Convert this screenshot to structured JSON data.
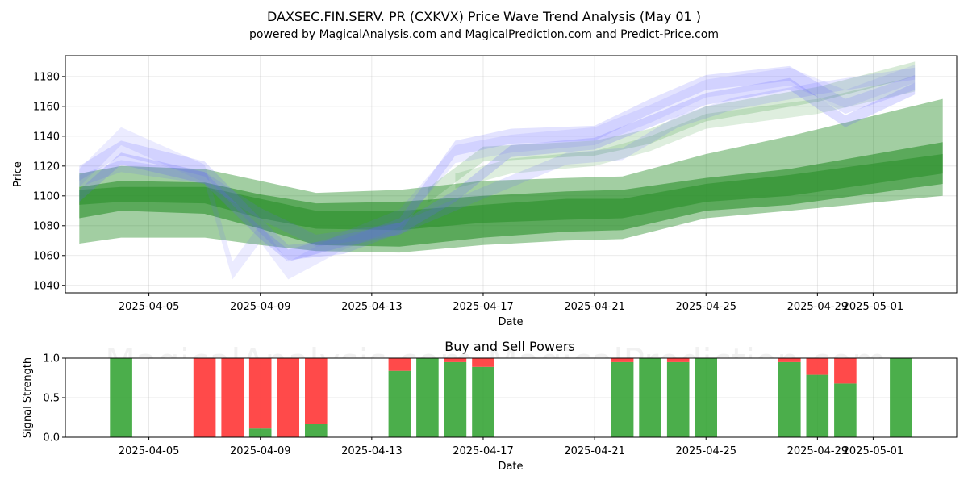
{
  "chart_data": [
    {
      "type": "area",
      "title": "DAXSEC.FIN.SERV. PR (CXKVX) Price Wave Trend Analysis (May 01 )",
      "subtitle": "powered by MagicalAnalysis.com and MagicalPrediction.com and Predict-Price.com",
      "xlabel": "Date",
      "ylabel": "Price",
      "xlim": [
        "2025-04-02",
        "2025-05-04"
      ],
      "ylim": [
        1035,
        1194
      ],
      "x_ticks": [
        "2025-04-05",
        "2025-04-09",
        "2025-04-13",
        "2025-04-17",
        "2025-04-21",
        "2025-04-25",
        "2025-04-29",
        "2025-05-01"
      ],
      "y_ticks": [
        1040,
        1060,
        1080,
        1100,
        1120,
        1140,
        1160,
        1180
      ],
      "grid": true,
      "watermarks": [
        "MagicalAnalysis.com",
        "MagicalPrediction.com"
      ],
      "colors": {
        "green": "#228b22",
        "blue": "#6464ff",
        "buy": "#2ca02c",
        "sell": "#ff4040"
      },
      "green_bands": [
        {
          "x": [
            "2025-04-02.5",
            "2025-04-04",
            "2025-04-07",
            "2025-04-09",
            "2025-04-11",
            "2025-04-14",
            "2025-04-17",
            "2025-04-20",
            "2025-04-22",
            "2025-04-25",
            "2025-04-28",
            "2025-05-03.5"
          ],
          "upper": [
            1106,
            1110,
            1109,
            1101,
            1095,
            1096,
            1100,
            1103,
            1104,
            1112,
            1118,
            1136
          ],
          "lower": [
            1085,
            1090,
            1088,
            1078,
            1067,
            1066,
            1072,
            1076,
            1077,
            1090,
            1094,
            1108
          ],
          "opacity": 0.55
        },
        {
          "x": [
            "2025-04-02.5",
            "2025-04-04",
            "2025-04-07",
            "2025-04-09",
            "2025-04-11",
            "2025-04-14",
            "2025-04-17",
            "2025-04-20",
            "2025-04-22",
            "2025-04-25",
            "2025-04-28",
            "2025-05-03.5"
          ],
          "upper": [
            1115,
            1120,
            1118,
            1110,
            1102,
            1104,
            1110,
            1112,
            1113,
            1128,
            1140,
            1165
          ],
          "lower": [
            1068,
            1072,
            1072,
            1067,
            1063,
            1062,
            1067,
            1070,
            1071,
            1085,
            1090,
            1100
          ],
          "opacity": 0.42
        },
        {
          "x": [
            "2025-04-02.5",
            "2025-04-04",
            "2025-04-07",
            "2025-04-09",
            "2025-04-11",
            "2025-04-14",
            "2025-04-17",
            "2025-04-20",
            "2025-04-22",
            "2025-04-25",
            "2025-04-28",
            "2025-05-03.5"
          ],
          "upper": [
            1104,
            1106,
            1106,
            1098,
            1090,
            1090,
            1094,
            1098,
            1098,
            1108,
            1114,
            1128
          ],
          "lower": [
            1094,
            1096,
            1095,
            1085,
            1078,
            1077,
            1082,
            1084,
            1085,
            1096,
            1100,
            1115
          ],
          "opacity": 0.5
        }
      ],
      "blue_bands": [
        {
          "x": [
            "2025-04-02.5",
            "2025-04-04",
            "2025-04-07",
            "2025-04-09",
            "2025-04-10",
            "2025-04-12",
            "2025-04-14",
            "2025-04-16",
            "2025-04-18",
            "2025-04-21",
            "2025-04-23",
            "2025-04-25",
            "2025-04-28",
            "2025-04-30",
            "2025-05-02.5"
          ],
          "center": [
            1115,
            1132,
            1118,
            1080,
            1062,
            1066,
            1080,
            1132,
            1140,
            1142,
            1160,
            1176,
            1182,
            1160,
            1176
          ],
          "half": 5,
          "opacity": 0.18
        },
        {
          "x": [
            "2025-04-02.5",
            "2025-04-04",
            "2025-04-07",
            "2025-04-08",
            "2025-04-09",
            "2025-04-10",
            "2025-04-12",
            "2025-04-14",
            "2025-04-16",
            "2025-04-18",
            "2025-04-21",
            "2025-04-23",
            "2025-04-25",
            "2025-04-28",
            "2025-04-30",
            "2025-05-02.5"
          ],
          "center": [
            1112,
            1140,
            1115,
            1050,
            1075,
            1050,
            1070,
            1085,
            1128,
            1135,
            1140,
            1155,
            1172,
            1180,
            1165,
            1182
          ],
          "half": 6,
          "opacity": 0.13
        },
        {
          "x": [
            "2025-04-02.5",
            "2025-04-04",
            "2025-04-07",
            "2025-04-09",
            "2025-04-10",
            "2025-04-12",
            "2025-04-14",
            "2025-04-16",
            "2025-04-18",
            "2025-04-21",
            "2025-04-23",
            "2025-04-25",
            "2025-04-28",
            "2025-04-30",
            "2025-05-02.5"
          ],
          "center": [
            1100,
            1125,
            1112,
            1075,
            1060,
            1070,
            1078,
            1100,
            1130,
            1135,
            1150,
            1165,
            1175,
            1150,
            1172
          ],
          "half": 4,
          "opacity": 0.22
        },
        {
          "x": [
            "2025-04-02.5",
            "2025-04-04",
            "2025-04-07",
            "2025-04-09",
            "2025-04-11",
            "2025-04-14",
            "2025-04-17",
            "2025-04-20",
            "2025-04-22",
            "2025-04-24",
            "2025-04-26",
            "2025-04-29",
            "2025-05-02.5"
          ],
          "center": [
            1110,
            1120,
            1112,
            1088,
            1070,
            1078,
            1102,
            1125,
            1128,
            1150,
            1162,
            1172,
            1182
          ],
          "half": 4,
          "opacity": 0.16
        }
      ],
      "light_green_bands": [
        {
          "x": [
            "2025-04-15",
            "2025-04-17",
            "2025-04-21",
            "2025-04-23",
            "2025-04-25",
            "2025-04-29",
            "2025-05-02.5"
          ],
          "center": [
            1100,
            1128,
            1132,
            1140,
            1155,
            1168,
            1185
          ],
          "half": 5,
          "opacity": 0.18
        },
        {
          "x": [
            "2025-04-16",
            "2025-04-18",
            "2025-04-21",
            "2025-04-23",
            "2025-04-25",
            "2025-04-29",
            "2025-05-02.5"
          ],
          "center": [
            1110,
            1120,
            1125,
            1135,
            1150,
            1160,
            1175
          ],
          "half": 5,
          "opacity": 0.15
        }
      ]
    },
    {
      "type": "bar",
      "title": "Buy and Sell Powers",
      "xlabel": "Date",
      "ylabel": "Signal Strength",
      "xlim": [
        "2025-04-02",
        "2025-05-04"
      ],
      "ylim": [
        0,
        1
      ],
      "y_ticks": [
        0.0,
        0.5,
        1.0
      ],
      "y_tick_labels": [
        "0.0",
        "0.5",
        "1.0"
      ],
      "x_ticks": [
        "2025-04-05",
        "2025-04-09",
        "2025-04-13",
        "2025-04-17",
        "2025-04-21",
        "2025-04-25",
        "2025-04-29",
        "2025-05-01"
      ],
      "legend": "none",
      "bars": [
        {
          "date": "2025-04-04",
          "buy": 1.0
        },
        {
          "date": "2025-04-07",
          "buy": 0.0
        },
        {
          "date": "2025-04-08",
          "buy": 0.0
        },
        {
          "date": "2025-04-09",
          "buy": 0.11
        },
        {
          "date": "2025-04-10",
          "buy": 0.0
        },
        {
          "date": "2025-04-11",
          "buy": 0.17
        },
        {
          "date": "2025-04-14",
          "buy": 0.84
        },
        {
          "date": "2025-04-15",
          "buy": 1.0
        },
        {
          "date": "2025-04-16",
          "buy": 0.95
        },
        {
          "date": "2025-04-17",
          "buy": 0.89
        },
        {
          "date": "2025-04-22",
          "buy": 0.95
        },
        {
          "date": "2025-04-23",
          "buy": 1.0
        },
        {
          "date": "2025-04-24",
          "buy": 0.95
        },
        {
          "date": "2025-04-25",
          "buy": 1.0
        },
        {
          "date": "2025-04-28",
          "buy": 0.95
        },
        {
          "date": "2025-04-29",
          "buy": 0.79
        },
        {
          "date": "2025-04-30",
          "buy": 0.68
        },
        {
          "date": "2025-05-02",
          "buy": 1.0
        }
      ]
    }
  ]
}
